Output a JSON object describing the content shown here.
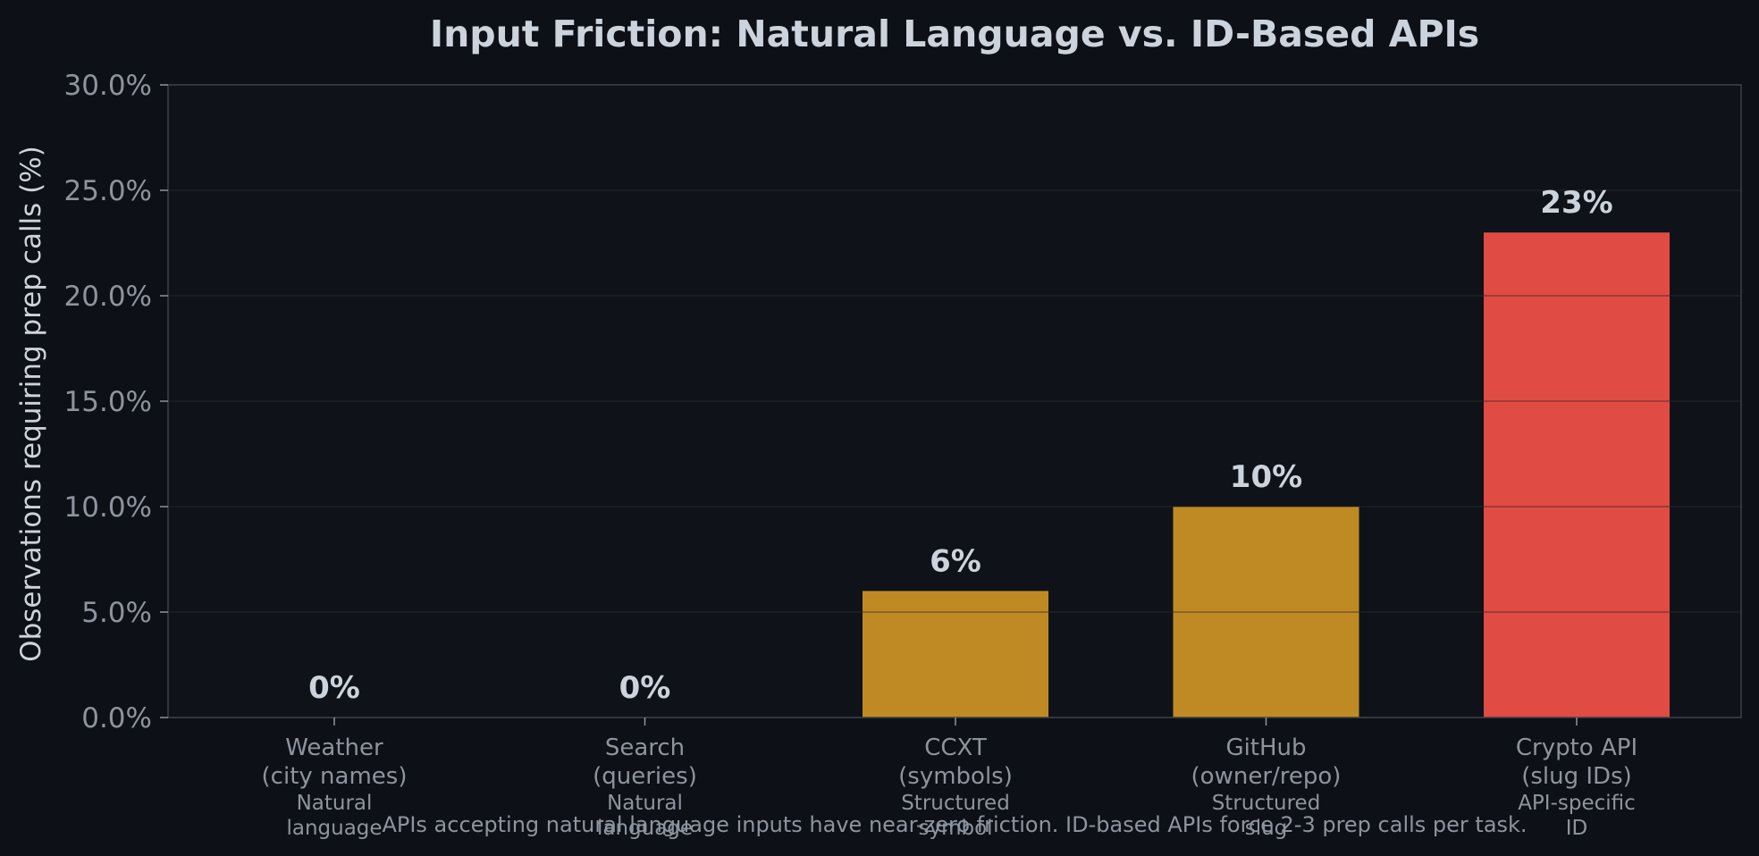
{
  "chart_data": {
    "type": "bar",
    "title": "Input Friction: Natural Language vs. ID-Based APIs",
    "ylabel": "Observations requiring prep calls (%)",
    "xlabel": "",
    "ylim": [
      0,
      30
    ],
    "yticks": [
      "0.0%",
      "5.0%",
      "10.0%",
      "15.0%",
      "20.0%",
      "25.0%",
      "30.0%"
    ],
    "grid": "horizontal",
    "categories": [
      [
        "Weather",
        "(city names)"
      ],
      [
        "Search",
        "(queries)"
      ],
      [
        "CCXT",
        "(symbols)"
      ],
      [
        "GitHub",
        "(owner/repo)"
      ],
      [
        "Crypto API",
        "(slug IDs)"
      ]
    ],
    "category_types": [
      [
        "Natural",
        "language"
      ],
      [
        "Natural",
        "language"
      ],
      [
        "Structured",
        "symbol"
      ],
      [
        "Structured",
        "slug"
      ],
      [
        "API-specific",
        "ID"
      ]
    ],
    "values": [
      0,
      0,
      6,
      10,
      23
    ],
    "value_labels": [
      "0%",
      "0%",
      "6%",
      "10%",
      "23%"
    ],
    "colors": [
      "#bf8a23",
      "#bf8a23",
      "#bf8a23",
      "#bf8a23",
      "#e04b44"
    ],
    "caption": "APIs accepting natural language inputs have near-zero friction. ID-based APIs force 2-3 prep calls per task."
  }
}
